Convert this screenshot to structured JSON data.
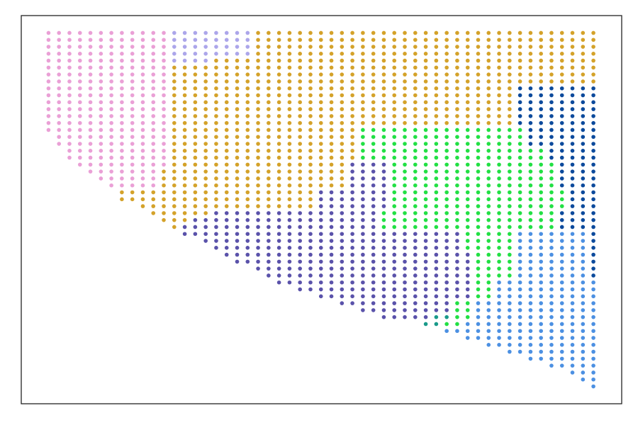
{
  "chart_data": {
    "type": "scatter",
    "xlim": [
      -2.6,
      54.7
    ],
    "ylim": [
      53.5,
      -2.5
    ],
    "marker_radius": 2.8,
    "series": [
      {
        "color": "#eaa0d6",
        "runs": [
          [
            0,
            0,
            11
          ],
          [
            1,
            0,
            11
          ],
          [
            2,
            0,
            11
          ],
          [
            3,
            0,
            11
          ],
          [
            4,
            0,
            11
          ],
          [
            5,
            0,
            11
          ],
          [
            6,
            0,
            11
          ],
          [
            7,
            0,
            11
          ],
          [
            8,
            0,
            11
          ],
          [
            9,
            0,
            11
          ],
          [
            10,
            0,
            11
          ],
          [
            11,
            0,
            11
          ],
          [
            12,
            0,
            11
          ],
          [
            13,
            0,
            11
          ],
          [
            14,
            0,
            11
          ],
          [
            15,
            1,
            11
          ],
          [
            16,
            1,
            11
          ],
          [
            17,
            2,
            11
          ],
          [
            18,
            2,
            11
          ],
          [
            19,
            3,
            11
          ],
          [
            20,
            4,
            10
          ],
          [
            21,
            5,
            10
          ],
          [
            22,
            6,
            10
          ]
        ]
      },
      {
        "color": "#aca6ea",
        "runs": [
          [
            0,
            12,
            19
          ],
          [
            1,
            12,
            19
          ],
          [
            2,
            12,
            19
          ],
          [
            3,
            12,
            19
          ],
          [
            4,
            12,
            15
          ]
        ]
      },
      {
        "color": "#d4a22a",
        "runs": [
          [
            0,
            20,
            52
          ],
          [
            1,
            20,
            52
          ],
          [
            2,
            20,
            52
          ],
          [
            3,
            20,
            52
          ],
          [
            4,
            16,
            52
          ],
          [
            5,
            12,
            52
          ],
          [
            6,
            12,
            52
          ],
          [
            7,
            12,
            52
          ],
          [
            8,
            12,
            44
          ],
          [
            9,
            12,
            44
          ],
          [
            10,
            12,
            44
          ],
          [
            11,
            12,
            44
          ],
          [
            12,
            12,
            44
          ],
          [
            13,
            12,
            44
          ],
          [
            14,
            12,
            29
          ],
          [
            15,
            12,
            29
          ],
          [
            16,
            12,
            29
          ],
          [
            17,
            12,
            29
          ],
          [
            18,
            12,
            29
          ],
          [
            19,
            12,
            28
          ],
          [
            20,
            11,
            28
          ],
          [
            21,
            11,
            28
          ],
          [
            22,
            11,
            28
          ],
          [
            23,
            7,
            25
          ],
          [
            24,
            7,
            25
          ],
          [
            25,
            9,
            25
          ],
          [
            26,
            10,
            15
          ],
          [
            27,
            11,
            13
          ],
          [
            28,
            12,
            12
          ]
        ]
      },
      {
        "color": "#22e044",
        "runs": [
          [
            14,
            30,
            45
          ],
          [
            15,
            30,
            45
          ],
          [
            16,
            30,
            45
          ],
          [
            17,
            30,
            47
          ],
          [
            18,
            30,
            47
          ],
          [
            19,
            33,
            48
          ],
          [
            20,
            33,
            48
          ],
          [
            21,
            33,
            48
          ],
          [
            22,
            33,
            48
          ],
          [
            23,
            33,
            49
          ],
          [
            24,
            33,
            49
          ],
          [
            25,
            33,
            49
          ],
          [
            26,
            32,
            48
          ],
          [
            27,
            32,
            48
          ],
          [
            28,
            32,
            48
          ],
          [
            29,
            40,
            44
          ],
          [
            30,
            40,
            44
          ],
          [
            31,
            40,
            44
          ],
          [
            32,
            41,
            44
          ],
          [
            33,
            41,
            44
          ],
          [
            34,
            41,
            44
          ],
          [
            35,
            41,
            44
          ],
          [
            36,
            41,
            42
          ],
          [
            37,
            41,
            42
          ],
          [
            38,
            41,
            42
          ],
          [
            39,
            39,
            40
          ],
          [
            40,
            39,
            40
          ],
          [
            41,
            39,
            40
          ],
          [
            42,
            38,
            39
          ]
        ]
      },
      {
        "color": "#0c4a9c",
        "runs": [
          [
            8,
            45,
            52
          ],
          [
            9,
            45,
            52
          ],
          [
            10,
            45,
            52
          ],
          [
            11,
            45,
            52
          ],
          [
            12,
            45,
            52
          ],
          [
            13,
            45,
            52
          ],
          [
            14,
            46,
            52
          ],
          [
            15,
            46,
            52
          ],
          [
            16,
            46,
            52
          ],
          [
            17,
            48,
            52
          ],
          [
            18,
            48,
            52
          ],
          [
            19,
            49,
            52
          ],
          [
            20,
            49,
            52
          ],
          [
            21,
            49,
            52
          ],
          [
            22,
            49,
            52
          ],
          [
            23,
            50,
            52
          ],
          [
            24,
            50,
            52
          ],
          [
            25,
            50,
            52
          ],
          [
            26,
            49,
            52
          ],
          [
            27,
            49,
            52
          ],
          [
            28,
            49,
            52
          ],
          [
            29,
            52,
            52
          ],
          [
            30,
            52,
            52
          ],
          [
            31,
            52,
            52
          ],
          [
            32,
            52,
            52
          ],
          [
            33,
            52,
            52
          ],
          [
            34,
            52,
            52
          ],
          [
            35,
            52,
            52
          ]
        ]
      },
      {
        "color": "#5a52aa",
        "runs": [
          [
            19,
            29,
            32
          ],
          [
            20,
            29,
            32
          ],
          [
            21,
            29,
            32
          ],
          [
            22,
            29,
            32
          ],
          [
            23,
            26,
            32
          ],
          [
            24,
            26,
            32
          ],
          [
            25,
            26,
            32
          ],
          [
            26,
            16,
            31
          ],
          [
            27,
            14,
            31
          ],
          [
            28,
            13,
            31
          ],
          [
            29,
            13,
            39
          ],
          [
            30,
            15,
            39
          ],
          [
            31,
            16,
            39
          ],
          [
            32,
            17,
            40
          ],
          [
            33,
            18,
            40
          ],
          [
            34,
            20,
            40
          ],
          [
            35,
            21,
            40
          ],
          [
            36,
            22,
            40
          ],
          [
            37,
            24,
            40
          ],
          [
            38,
            26,
            40
          ],
          [
            39,
            28,
            38
          ],
          [
            40,
            30,
            38
          ],
          [
            41,
            32,
            36
          ]
        ]
      },
      {
        "color": "#4c90e2",
        "runs": [
          [
            29,
            45,
            51
          ],
          [
            30,
            45,
            51
          ],
          [
            31,
            45,
            51
          ],
          [
            32,
            45,
            51
          ],
          [
            33,
            45,
            51
          ],
          [
            34,
            45,
            51
          ],
          [
            35,
            45,
            51
          ],
          [
            36,
            43,
            52
          ],
          [
            37,
            43,
            52
          ],
          [
            38,
            43,
            52
          ],
          [
            39,
            41,
            52
          ],
          [
            40,
            41,
            52
          ],
          [
            41,
            41,
            52
          ],
          [
            42,
            40,
            52
          ],
          [
            43,
            38,
            52
          ],
          [
            44,
            40,
            52
          ],
          [
            45,
            42,
            52
          ],
          [
            46,
            44,
            52
          ],
          [
            47,
            46,
            52
          ],
          [
            48,
            48,
            52
          ],
          [
            49,
            50,
            52
          ],
          [
            50,
            51,
            52
          ],
          [
            51,
            52,
            52
          ]
        ]
      },
      {
        "color": "#1a9a8a",
        "runs": [
          [
            41,
            37,
            38
          ],
          [
            42,
            36,
            37
          ]
        ]
      }
    ]
  }
}
